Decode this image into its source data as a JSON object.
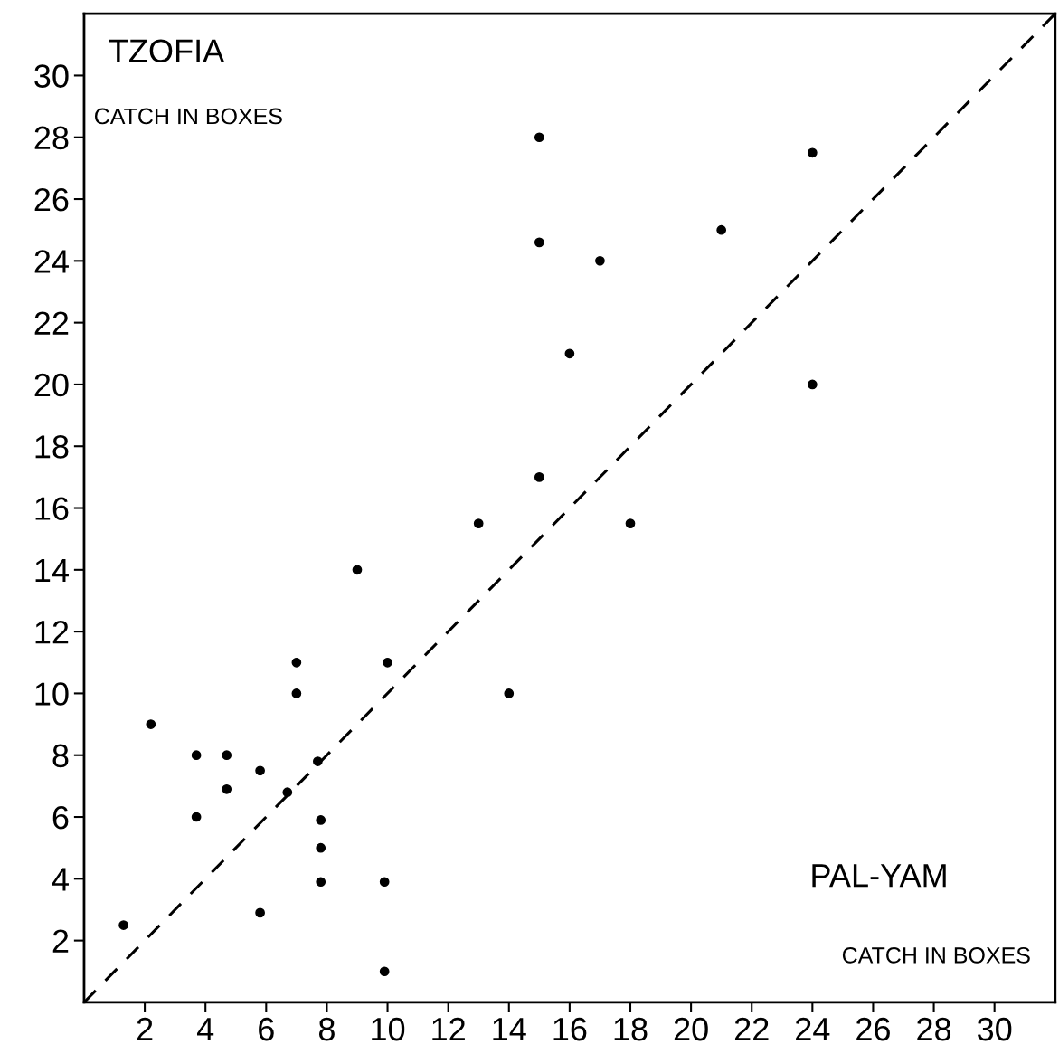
{
  "chart_data": {
    "type": "scatter",
    "annotations": [
      "TZOFIA",
      "CATCH IN BOXES",
      "PAL-YAM",
      "CATCH IN BOXES"
    ],
    "xlim": [
      0,
      32
    ],
    "ylim": [
      0,
      32
    ],
    "xticks": [
      2,
      4,
      6,
      8,
      10,
      12,
      14,
      16,
      18,
      20,
      22,
      24,
      26,
      28,
      30
    ],
    "yticks": [
      2,
      4,
      6,
      8,
      10,
      12,
      14,
      16,
      18,
      20,
      22,
      24,
      26,
      28,
      30
    ],
    "grid": false,
    "marker": "circle",
    "series": [
      {
        "color": "#000000",
        "x": [
          15,
          24,
          21,
          15,
          17,
          16,
          24,
          15,
          13,
          18,
          9,
          7,
          10,
          7,
          14,
          2.2,
          3.7,
          4.7,
          5.8,
          7.7,
          4.7,
          6.7,
          3.7,
          7.8,
          7.8,
          7.8,
          9.9,
          5.8,
          1.3,
          9.9
        ],
        "values": [
          28,
          27.5,
          25,
          24.6,
          24,
          21,
          20,
          17,
          15.5,
          15.5,
          14,
          11,
          11,
          10,
          10,
          9,
          8,
          8,
          7.5,
          7.8,
          6.9,
          6.8,
          6,
          5.9,
          5,
          3.9,
          3.9,
          2.9,
          2.5,
          1
        ]
      },
      {
        "type": "line",
        "color": "#000000",
        "line_style": "dashed",
        "marker": "none",
        "x": [
          0,
          32
        ],
        "values": [
          0,
          32
        ]
      }
    ]
  }
}
